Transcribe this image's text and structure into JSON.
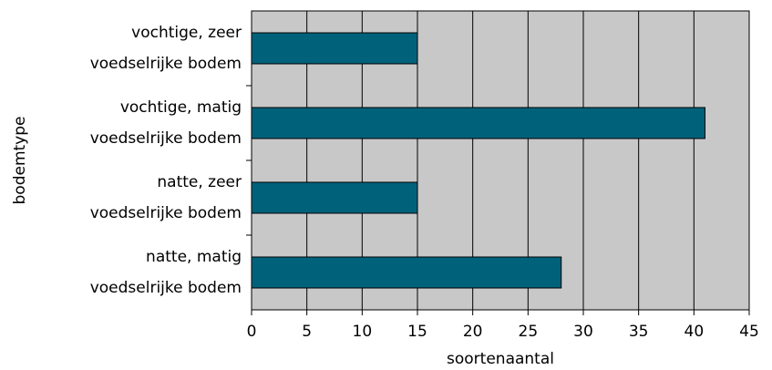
{
  "chart_data": {
    "type": "bar",
    "orientation": "horizontal",
    "x_label": "soortenaantal",
    "y_label": "bodemtype",
    "categories": [
      [
        "vochtige, zeer",
        "voedselrijke bodem"
      ],
      [
        "vochtige, matig",
        "voedselrijke bodem"
      ],
      [
        "natte, zeer",
        "voedselrijke bodem"
      ],
      [
        "natte, matig",
        "voedselrijke bodem"
      ]
    ],
    "values": [
      15,
      41,
      15,
      28
    ],
    "color": "#00627a",
    "background": "#c8c8c8",
    "xlim": [
      0,
      45
    ],
    "xticks": [
      0,
      5,
      10,
      15,
      20,
      25,
      30,
      35,
      40,
      45
    ],
    "grid": true
  }
}
